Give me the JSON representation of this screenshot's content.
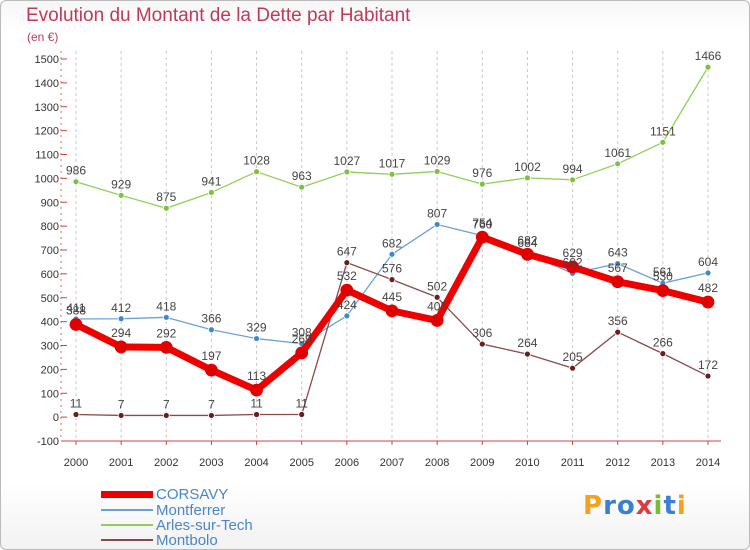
{
  "header": {
    "title": "Evolution du Montant de la Dette par Habitant",
    "unit": "(en €)"
  },
  "logo": {
    "letters": [
      "P",
      "r",
      "o",
      "x",
      "i",
      "t",
      "i"
    ],
    "colors": [
      "#f4a11f",
      "#3b7fd0",
      "#3b7fd0",
      "#e03a3e",
      "#7cbb2f",
      "#3b7fd0",
      "#f4a11f"
    ]
  },
  "chart_data": {
    "type": "line",
    "x": [
      "2000",
      "2001",
      "2002",
      "2003",
      "2004",
      "2005",
      "2006",
      "2007",
      "2008",
      "2009",
      "2010",
      "2011",
      "2012",
      "2013",
      "2014"
    ],
    "yticks": [
      "-100",
      "0",
      "100",
      "200",
      "300",
      "400",
      "500",
      "600",
      "700",
      "800",
      "900",
      "1000",
      "1100",
      "1200",
      "1300",
      "1400",
      "1500"
    ],
    "ylim": [
      -100,
      1500
    ],
    "grid": "vertical dashed",
    "legend_position": "bottom-left",
    "series": [
      {
        "name": "Arles-sur-Tech",
        "color": "#8fcf5a",
        "point_color": "#7cc142",
        "width": 1.3,
        "radius": 3,
        "values": [
          986,
          929,
          875,
          941,
          1028,
          963,
          1027,
          1017,
          1029,
          976,
          1002,
          994,
          1061,
          1151,
          1466
        ],
        "labels": [
          "986",
          "929",
          "875",
          "941",
          "1028",
          "963",
          "1027",
          "1017",
          "1029",
          "976",
          "1002",
          "994",
          "1061",
          "1151",
          "1466"
        ]
      },
      {
        "name": "Montferrer",
        "color": "#6aa2d6",
        "point_color": "#3f88cf",
        "width": 1.3,
        "radius": 3,
        "values": [
          411,
          412,
          418,
          366,
          329,
          308,
          424,
          682,
          807,
          760,
          684,
          602,
          643,
          561,
          604
        ],
        "labels": [
          "411",
          "412",
          "418",
          "366",
          "329",
          "308",
          "424",
          "682",
          "807",
          "760",
          "684",
          "602",
          "643",
          "561",
          "604"
        ]
      },
      {
        "name": "Montbolo",
        "color": "#8a4a4a",
        "point_color": "#6b1d1d",
        "width": 1.3,
        "radius": 3,
        "values": [
          11,
          7,
          7,
          7,
          11,
          11,
          647,
          576,
          502,
          306,
          264,
          205,
          356,
          266,
          172
        ],
        "labels": [
          "11",
          "7",
          "7",
          "7",
          "11",
          "11",
          "647",
          "576",
          "502",
          "306",
          "264",
          "205",
          "356",
          "266",
          "172"
        ]
      },
      {
        "name": "CORSAVY",
        "color": "#ee0000",
        "point_color": "#e00000",
        "width": 7,
        "radius": 6,
        "values": [
          388,
          294,
          292,
          197,
          113,
          269,
          532,
          445,
          405,
          754,
          682,
          629,
          567,
          530,
          482
        ],
        "labels": [
          "388",
          "294",
          "292",
          "197",
          "113",
          "269",
          "532",
          "445",
          "405",
          "754",
          "682",
          "629",
          "567",
          "530",
          "482"
        ]
      }
    ]
  },
  "legend": [
    {
      "label": "CORSAVY",
      "color": "#ee0000",
      "thickness": 7
    },
    {
      "label": "Montferrer",
      "color": "#6aa2d6",
      "thickness": 2
    },
    {
      "label": "Arles-sur-Tech",
      "color": "#8fcf5a",
      "thickness": 2
    },
    {
      "label": "Montbolo",
      "color": "#8a4a4a",
      "thickness": 2
    }
  ]
}
